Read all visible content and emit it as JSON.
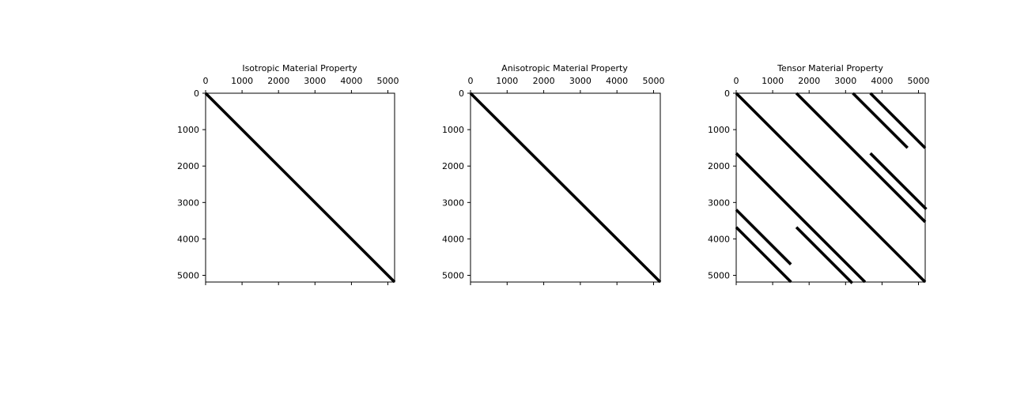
{
  "chart_data": [
    {
      "type": "heatmap",
      "title": "Isotropic Material Property",
      "xlim": [
        0,
        5184
      ],
      "ylim": [
        5184,
        0
      ],
      "xticks": [
        0,
        1000,
        2000,
        3000,
        4000,
        5000
      ],
      "yticks": [
        0,
        1000,
        2000,
        3000,
        4000,
        5000
      ],
      "xtick_labels": [
        "0",
        "1000",
        "2000",
        "3000",
        "4000",
        "5000"
      ],
      "ytick_labels": [
        "0",
        "1000",
        "2000",
        "3000",
        "4000",
        "5000"
      ],
      "xaxis_position": "top",
      "grid": false,
      "nonzero_color": "#000000",
      "nonzero_segments": [
        {
          "row_start": 0,
          "col_start": 0,
          "length": 5184
        }
      ]
    },
    {
      "type": "heatmap",
      "title": "Anisotropic Material Property",
      "xlim": [
        0,
        5184
      ],
      "ylim": [
        5184,
        0
      ],
      "xticks": [
        0,
        1000,
        2000,
        3000,
        4000,
        5000
      ],
      "yticks": [
        0,
        1000,
        2000,
        3000,
        4000,
        5000
      ],
      "xtick_labels": [
        "0",
        "1000",
        "2000",
        "3000",
        "4000",
        "5000"
      ],
      "ytick_labels": [
        "0",
        "1000",
        "2000",
        "3000",
        "4000",
        "5000"
      ],
      "xaxis_position": "top",
      "grid": false,
      "nonzero_color": "#000000",
      "nonzero_segments": [
        {
          "row_start": 0,
          "col_start": 0,
          "length": 5184
        }
      ]
    },
    {
      "type": "heatmap",
      "title": "Tensor Material Property",
      "xlim": [
        0,
        5184
      ],
      "ylim": [
        5184,
        0
      ],
      "xticks": [
        0,
        1000,
        2000,
        3000,
        4000,
        5000
      ],
      "yticks": [
        0,
        1000,
        2000,
        3000,
        4000,
        5000
      ],
      "xtick_labels": [
        "0",
        "1000",
        "2000",
        "3000",
        "4000",
        "5000"
      ],
      "ytick_labels": [
        "0",
        "1000",
        "2000",
        "3000",
        "4000",
        "5000"
      ],
      "xaxis_position": "top",
      "grid": false,
      "nonzero_color": "#000000",
      "nonzero_segments": [
        {
          "row_start": 0,
          "col_start": 0,
          "length": 5184
        },
        {
          "row_start": 0,
          "col_start": 1650,
          "length": 3534
        },
        {
          "row_start": 0,
          "col_start": 3200,
          "length": 1500
        },
        {
          "row_start": 0,
          "col_start": 3680,
          "length": 1504
        },
        {
          "row_start": 1650,
          "col_start": 0,
          "length": 3534
        },
        {
          "row_start": 1650,
          "col_start": 3680,
          "length": 1534
        },
        {
          "row_start": 3200,
          "col_start": 0,
          "length": 1500
        },
        {
          "row_start": 3680,
          "col_start": 0,
          "length": 1504
        },
        {
          "row_start": 3680,
          "col_start": 1650,
          "length": 1534
        }
      ]
    }
  ]
}
